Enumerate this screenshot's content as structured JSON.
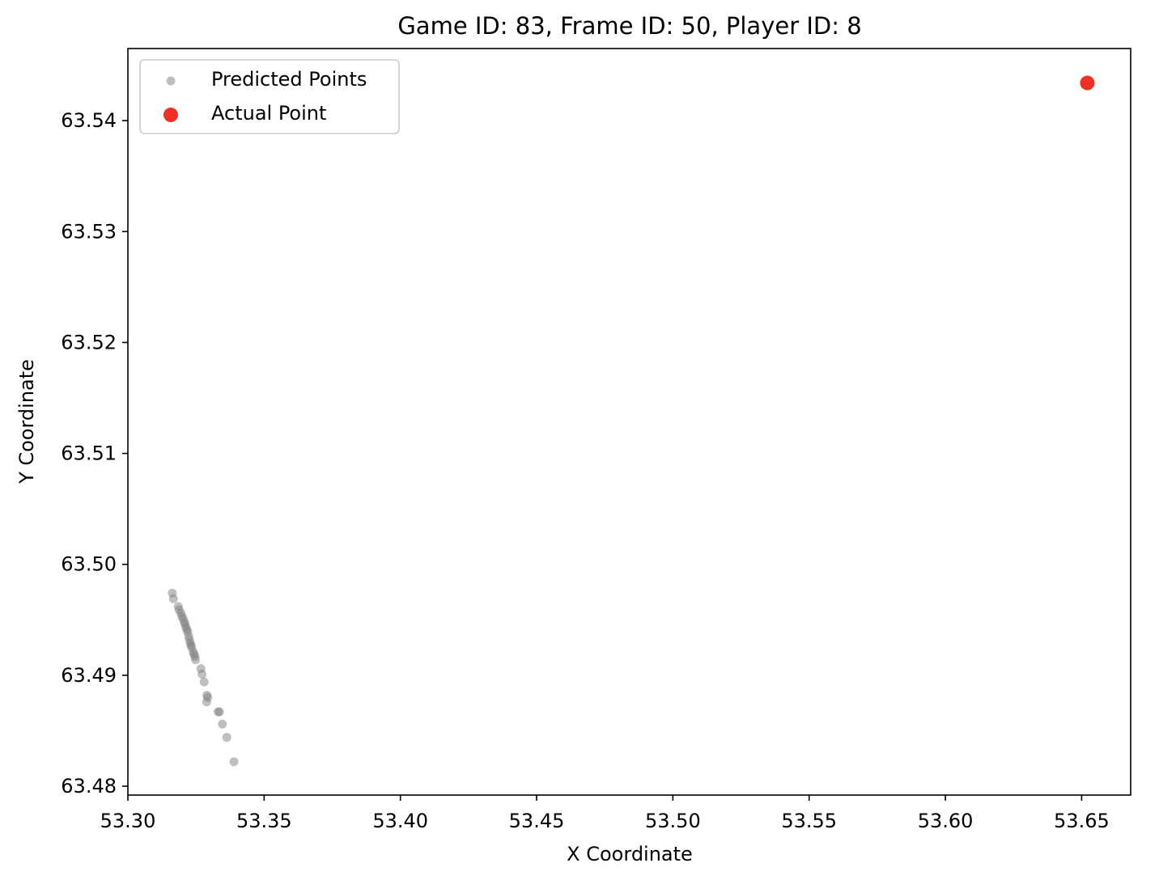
{
  "chart_data": {
    "type": "scatter",
    "title": "Game ID: 83, Frame ID: 50, Player ID: 8",
    "xlabel": "X Coordinate",
    "ylabel": "Y Coordinate",
    "xlim": [
      53.3,
      53.668
    ],
    "ylim": [
      63.4792,
      63.5465
    ],
    "xticks": [
      53.3,
      53.35,
      53.4,
      53.45,
      53.5,
      53.55,
      53.6,
      53.65
    ],
    "xtick_labels": [
      "53.30",
      "53.35",
      "53.40",
      "53.45",
      "53.50",
      "53.55",
      "53.60",
      "53.65"
    ],
    "yticks": [
      63.48,
      63.49,
      63.5,
      63.51,
      63.52,
      63.53,
      63.54
    ],
    "ytick_labels": [
      "63.48",
      "63.49",
      "63.50",
      "63.51",
      "63.52",
      "63.53",
      "63.54"
    ],
    "grid": false,
    "legend_position": "top-left",
    "series": [
      {
        "name": "Predicted Points",
        "color": "#808080",
        "alpha": 0.5,
        "points": [
          [
            53.3163,
            63.4974
          ],
          [
            53.3167,
            63.4969
          ],
          [
            53.3185,
            63.4962
          ],
          [
            53.3188,
            63.4959
          ],
          [
            53.3195,
            63.4956
          ],
          [
            53.3198,
            63.4953
          ],
          [
            53.3203,
            63.4951
          ],
          [
            53.3207,
            63.4948
          ],
          [
            53.321,
            63.4946
          ],
          [
            53.3213,
            63.4943
          ],
          [
            53.3217,
            63.4941
          ],
          [
            53.322,
            63.4939
          ],
          [
            53.3223,
            63.4935
          ],
          [
            53.3226,
            63.4932
          ],
          [
            53.3229,
            63.4929
          ],
          [
            53.3232,
            63.4927
          ],
          [
            53.3234,
            63.4925
          ],
          [
            53.324,
            63.4921
          ],
          [
            53.3243,
            63.4919
          ],
          [
            53.3246,
            63.4917
          ],
          [
            53.3248,
            63.4914
          ],
          [
            53.3268,
            63.4906
          ],
          [
            53.3272,
            63.4901
          ],
          [
            53.328,
            63.4894
          ],
          [
            53.329,
            63.4882
          ],
          [
            53.3293,
            63.488
          ],
          [
            53.3289,
            63.4876
          ],
          [
            53.3331,
            63.4867
          ],
          [
            53.3336,
            63.4867
          ],
          [
            53.3347,
            63.4856
          ],
          [
            53.3363,
            63.4844
          ],
          [
            53.3389,
            63.4822
          ]
        ]
      },
      {
        "name": "Actual Point",
        "color": "#ee3124",
        "alpha": 1.0,
        "points": [
          [
            53.6521,
            63.5434
          ]
        ]
      }
    ]
  }
}
